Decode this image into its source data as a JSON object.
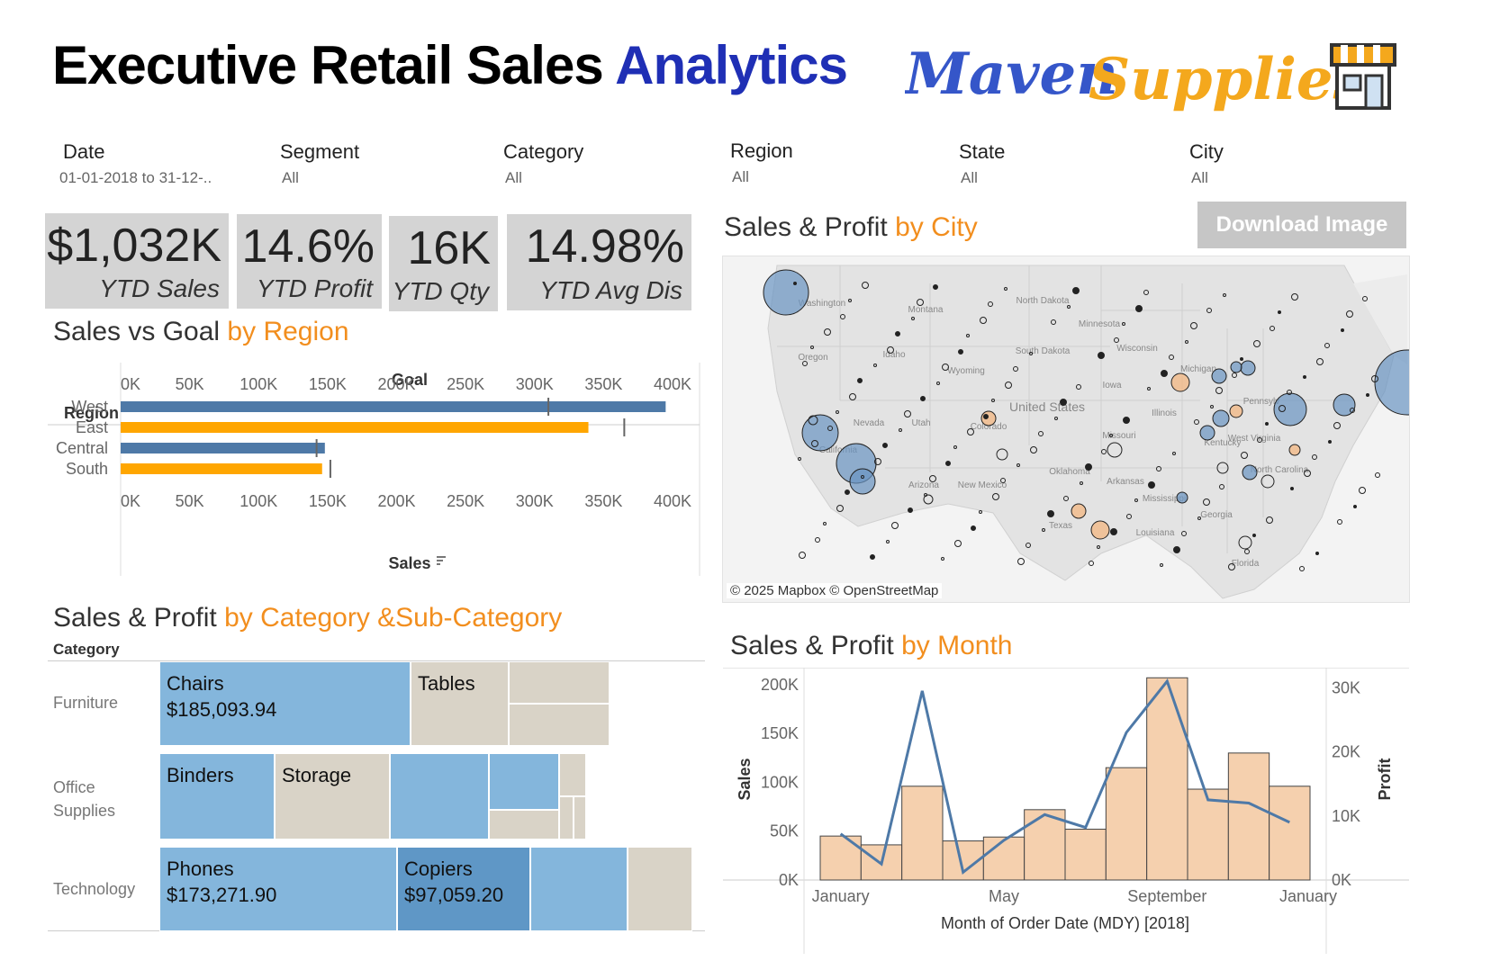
{
  "header": {
    "title_main": "Executive Retail Sales",
    "title_accent": "Analytics",
    "logo_part1": "Maven",
    "logo_part2": "Supplies"
  },
  "filters": [
    {
      "label": "Date",
      "value": "01-01-2018 to 31-12-.."
    },
    {
      "label": "Segment",
      "value": "All"
    },
    {
      "label": "Category",
      "value": "All"
    },
    {
      "label": "Region",
      "value": "All"
    },
    {
      "label": "State",
      "value": "All"
    },
    {
      "label": "City",
      "value": "All"
    }
  ],
  "kpis": [
    {
      "value": "$1,032K",
      "label": "YTD Sales"
    },
    {
      "value": "14.6%",
      "label": "YTD Profit"
    },
    {
      "value": "16K",
      "label": "YTD Qty"
    },
    {
      "value": "14.98%",
      "label": "YTD Avg Dis"
    }
  ],
  "sections": {
    "region": {
      "title": "Sales vs Goal ",
      "title_accent": "by Region"
    },
    "city": {
      "title": "Sales & Profit ",
      "title_accent": "by City"
    },
    "category": {
      "title": "Sales & Profit ",
      "title_accent": "by Category &Sub-Category"
    },
    "month": {
      "title": "Sales  & Profit ",
      "title_accent": "by Month"
    }
  },
  "download_button": "Download Image",
  "map": {
    "attribution": "© 2025 Mapbox © OpenStreetMap",
    "labels": [
      "Washington",
      "Montana",
      "North Dakota",
      "Minnesota",
      "Oregon",
      "Idaho",
      "South Dakota",
      "Wisconsin",
      "Wyoming",
      "Michigan",
      "Iowa",
      "Nevada",
      "Utah",
      "Colorado",
      "United States",
      "Illinois",
      "Pennsylv",
      "California",
      "Missouri",
      "Kentucky",
      "West Virginia",
      "Arizona",
      "New Mexico",
      "Oklahoma",
      "Arkansas",
      "Mississippi",
      "Georgia",
      "Texas",
      "Louisiana",
      "Florida",
      "North Carolina"
    ],
    "colors": {
      "land": "#e3e3e3",
      "water": "#f5f5f5",
      "profit_high": "#6a94c2",
      "profit_low": "#f3b47a"
    }
  },
  "region_chart": {
    "type": "bar",
    "dim_header": "Region",
    "top_axis_title": "Goal",
    "x_title": "Sales",
    "categories": [
      "West",
      "East",
      "Central",
      "South"
    ],
    "sales": [
      395000,
      339000,
      148000,
      146000
    ],
    "goal": [
      310000,
      365000,
      142000,
      152000
    ],
    "colors": [
      "#4e79a7",
      "#ffa600",
      "#4e79a7",
      "#ffa600"
    ],
    "ticks": [
      "0K",
      "50K",
      "100K",
      "150K",
      "200K",
      "250K",
      "300K",
      "350K",
      "400K"
    ],
    "xlim": [
      0,
      400000
    ]
  },
  "treemap": {
    "dim_header": "Category",
    "rows": [
      {
        "category": "Furniture",
        "cells": [
          {
            "name": "Chairs",
            "value": "$185,093.94",
            "color": "#84b6dc"
          },
          {
            "name": "Tables",
            "value": "",
            "color": "#d9d3c7"
          },
          {
            "name": "",
            "value": "",
            "color": "#d9d3c7"
          },
          {
            "name": "",
            "value": "",
            "color": "#d9d3c7"
          }
        ]
      },
      {
        "category": "Office Supplies",
        "cells": [
          {
            "name": "Binders",
            "value": "",
            "color": "#84b6dc"
          },
          {
            "name": "Storage",
            "value": "",
            "color": "#d9d3c7"
          },
          {
            "name": "",
            "value": "",
            "color": "#84b6dc"
          },
          {
            "name": "",
            "value": "",
            "color": "#84b6dc"
          },
          {
            "name": "",
            "value": "",
            "color": "#d9d3c7"
          },
          {
            "name": "",
            "value": "",
            "color": "#d9d3c7"
          }
        ]
      },
      {
        "category": "Technology",
        "cells": [
          {
            "name": "Phones",
            "value": "$173,271.90",
            "color": "#84b6dc"
          },
          {
            "name": "Copiers",
            "value": "$97,059.20",
            "color": "#5f97c6"
          },
          {
            "name": "",
            "value": "",
            "color": "#84b6dc"
          },
          {
            "name": "",
            "value": "",
            "color": "#d9d3c7"
          }
        ]
      }
    ]
  },
  "chart_data": {
    "type": "bar",
    "title": "Sales  & Profit by Month",
    "xlabel": "Month of Order Date (MDY) [2018]",
    "ylabel": "Sales",
    "y2label": "Profit",
    "x_tick_labels": [
      "January",
      "May",
      "September",
      "January"
    ],
    "categories": [
      "Jan",
      "Feb",
      "Mar",
      "Apr",
      "May",
      "Jun",
      "Jul",
      "Aug",
      "Sep",
      "Oct",
      "Nov",
      "Dec"
    ],
    "ylim": [
      0,
      210000
    ],
    "y2lim": [
      0,
      32000
    ],
    "y_ticks": [
      "0K",
      "50K",
      "100K",
      "150K",
      "200K"
    ],
    "y2_ticks": [
      "0K",
      "10K",
      "20K",
      "30K"
    ],
    "series": [
      {
        "name": "Sales",
        "type": "bar",
        "color": "#f5d0ae",
        "values": [
          45000,
          36000,
          96000,
          40000,
          44000,
          72000,
          52000,
          115000,
          207000,
          93000,
          130000,
          96000
        ]
      },
      {
        "name": "Profit",
        "type": "line",
        "color": "#4e79a7",
        "values": [
          7200,
          2500,
          29500,
          1200,
          6200,
          10200,
          8200,
          23000,
          31000,
          12500,
          12000,
          9000
        ]
      }
    ]
  }
}
